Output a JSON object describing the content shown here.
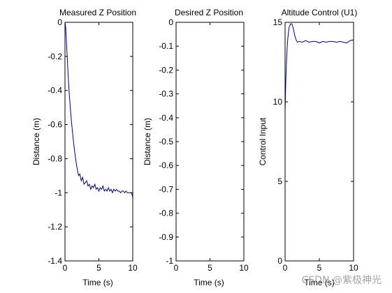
{
  "chart_data": [
    {
      "type": "line",
      "title": "Measured Z Position",
      "xlabel": "Time (s)",
      "ylabel": "Distance (m)",
      "xlim": [
        0,
        10
      ],
      "ylim": [
        -1.4,
        0
      ],
      "xticks": [
        "0",
        "5",
        "10"
      ],
      "yticks": [
        "0",
        "-0.2",
        "-0.4",
        "-0.6",
        "-0.8",
        "-1",
        "-1.2",
        "-1.4"
      ],
      "grid": false,
      "series": [
        {
          "color": "#00008b",
          "x": [
            0,
            0.1,
            0.2,
            0.3,
            0.4,
            0.5,
            0.6,
            0.8,
            1.0,
            1.2,
            1.4,
            1.6,
            1.8,
            2.0,
            2.2,
            2.4,
            2.6,
            2.8,
            3.0,
            3.2,
            3.4,
            3.6,
            3.8,
            4.0,
            4.2,
            4.4,
            4.6,
            4.8,
            5.0,
            5.2,
            5.4,
            5.6,
            5.8,
            6.0,
            6.2,
            6.4,
            6.6,
            6.8,
            7.0,
            7.2,
            7.4,
            7.6,
            7.8,
            8.0,
            8.2,
            8.4,
            8.6,
            8.8,
            9.0,
            9.2,
            9.4,
            9.6,
            9.8,
            9.9,
            10.0
          ],
          "y": [
            0,
            -0.03,
            -0.1,
            -0.18,
            -0.26,
            -0.33,
            -0.4,
            -0.51,
            -0.6,
            -0.68,
            -0.75,
            -0.81,
            -0.86,
            -0.9,
            -0.89,
            -0.93,
            -0.91,
            -0.95,
            -0.94,
            -0.93,
            -0.96,
            -0.95,
            -0.98,
            -0.96,
            -0.97,
            -0.95,
            -0.98,
            -0.97,
            -0.99,
            -0.97,
            -0.98,
            -0.96,
            -0.99,
            -0.98,
            -0.99,
            -0.97,
            -0.99,
            -0.98,
            -1.0,
            -0.98,
            -0.99,
            -0.98,
            -0.99,
            -0.99,
            -1.0,
            -0.99,
            -0.99,
            -1.0,
            -0.99,
            -1.0,
            -1.0,
            -1.0,
            -1.0,
            -1.01,
            -1.03
          ]
        }
      ]
    },
    {
      "type": "line",
      "title": "Desired Z Position",
      "xlabel": "Time (s)",
      "ylabel": "Distance (m)",
      "xlim": [
        0,
        10
      ],
      "ylim": [
        -1,
        0
      ],
      "xticks": [
        "0",
        "5",
        "10"
      ],
      "yticks": [
        "0",
        "-0.1",
        "-0.2",
        "-0.3",
        "-0.4",
        "-0.5",
        "-0.6",
        "-0.7",
        "-0.8",
        "-0.9",
        "-1"
      ],
      "grid": false,
      "series": []
    },
    {
      "type": "line",
      "title": "Altitude Control (U1)",
      "xlabel": "Time (s)",
      "ylabel": "Control Input",
      "xlim": [
        0,
        10
      ],
      "ylim": [
        0,
        15
      ],
      "xticks": [
        "0",
        "5",
        "10"
      ],
      "yticks": [
        "0",
        "5",
        "10",
        "15"
      ],
      "grid": false,
      "series": [
        {
          "color": "#00008b",
          "x": [
            0,
            0.1,
            0.2,
            0.3,
            0.4,
            0.5,
            0.6,
            0.8,
            1.0,
            1.2,
            1.4,
            1.6,
            1.8,
            2.0,
            2.5,
            3.0,
            3.5,
            4.0,
            4.5,
            5.0,
            5.5,
            6.0,
            6.5,
            7.0,
            7.5,
            8.0,
            8.5,
            9.0,
            9.5,
            10.0
          ],
          "y": [
            9.4,
            11.2,
            12.5,
            13.4,
            14.0,
            14.4,
            14.7,
            14.9,
            14.9,
            14.6,
            14.2,
            13.9,
            13.75,
            13.8,
            13.75,
            13.85,
            13.75,
            13.8,
            13.8,
            13.7,
            13.8,
            13.75,
            13.8,
            13.8,
            13.75,
            13.8,
            13.75,
            13.7,
            13.85,
            13.9
          ]
        }
      ]
    }
  ],
  "watermark": "CSDN @紫极神光"
}
